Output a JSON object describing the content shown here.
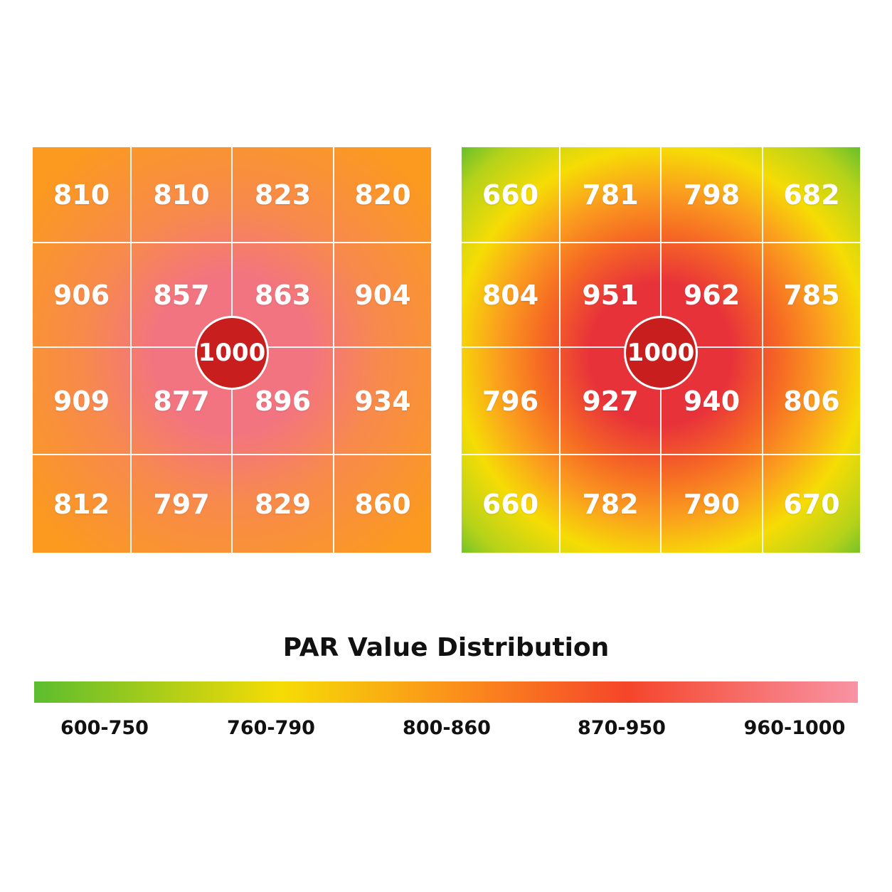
{
  "chart_data": [
    {
      "type": "heatmap",
      "rows": 4,
      "cols": 4,
      "values": [
        [
          810,
          810,
          823,
          820
        ],
        [
          906,
          857,
          863,
          904
        ],
        [
          909,
          877,
          896,
          934
        ],
        [
          812,
          797,
          829,
          860
        ]
      ],
      "center_value": "1000"
    },
    {
      "type": "heatmap",
      "rows": 4,
      "cols": 4,
      "values": [
        [
          660,
          781,
          798,
          682
        ],
        [
          804,
          951,
          962,
          785
        ],
        [
          796,
          927,
          940,
          806
        ],
        [
          660,
          782,
          790,
          670
        ]
      ],
      "center_value": "1000"
    }
  ],
  "legend": {
    "title": "PAR Value Distribution",
    "ranges": [
      "600-750",
      "760-790",
      "800-860",
      "870-950",
      "960-1000"
    ],
    "colors": [
      "#5cbd2e",
      "#f6dc05",
      "#fb8d1c",
      "#f5452a",
      "#f893a4"
    ]
  },
  "colors": {
    "center_badge": "#c81e1e",
    "left_edge": "#fb9a1e",
    "left_center": "#f27480",
    "right_corner": "#5cbd2e",
    "right_mid": "#f6dc05",
    "right_center": "#e8323a"
  }
}
